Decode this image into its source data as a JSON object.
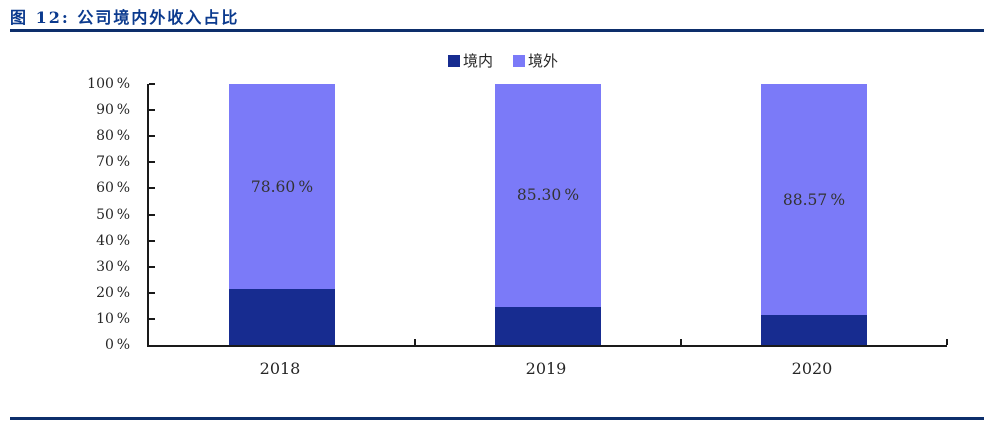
{
  "figure": {
    "title": "图 12: 公司境内外收入占比"
  },
  "colors": {
    "title": "#0B3A8E",
    "rule": "#0D2E6B",
    "axis": "#1A1A1A",
    "text": "#262626",
    "label": "#333333",
    "background": "#FFFFFF"
  },
  "chart_data": {
    "type": "bar",
    "variant": "stacked-100-percent",
    "title": "公司境内外收入占比",
    "categories": [
      "2018",
      "2019",
      "2020"
    ],
    "series": [
      {
        "key": "domestic",
        "name": "境内",
        "color": "#172C90",
        "values": [
          21.4,
          14.7,
          11.43
        ]
      },
      {
        "key": "overseas",
        "name": "境外",
        "color": "#7B7AF8",
        "values": [
          78.6,
          85.3,
          88.57
        ],
        "labels": [
          "78.60 %",
          "85.30 %",
          "88.57 %"
        ]
      }
    ],
    "ylim": [
      0,
      100
    ],
    "yticks": [
      {
        "value": 0,
        "label": "0 %"
      },
      {
        "value": 10,
        "label": "10 %"
      },
      {
        "value": 20,
        "label": "20 %"
      },
      {
        "value": 30,
        "label": "30 %"
      },
      {
        "value": 40,
        "label": "40 %"
      },
      {
        "value": 50,
        "label": "50 %"
      },
      {
        "value": 60,
        "label": "60 %"
      },
      {
        "value": 70,
        "label": "70 %"
      },
      {
        "value": 80,
        "label": "80 %"
      },
      {
        "value": 90,
        "label": "90 %"
      },
      {
        "value": 100,
        "label": "100 %"
      }
    ],
    "legend_position": "top-center",
    "grid": false
  }
}
